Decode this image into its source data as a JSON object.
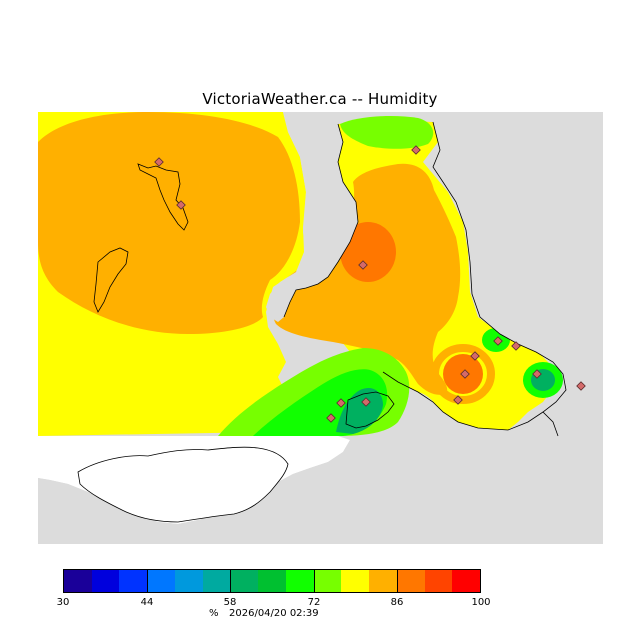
{
  "title": "VictoriaWeather.ca -- Humidity",
  "legend": {
    "units": "%",
    "labels": [
      "30",
      "44",
      "58",
      "72",
      "86",
      "100"
    ],
    "colors": [
      "#1a0099",
      "#0000dd",
      "#0033ff",
      "#0077ff",
      "#0099dd",
      "#00aaa0",
      "#00b060",
      "#00c030",
      "#11ff00",
      "#77ff00",
      "#ffff00",
      "#ffb000",
      "#ff7700",
      "#ff4400",
      "#ff0000"
    ]
  },
  "timestamp": "2026/04/20 02:39",
  "map": {
    "colors": {
      "land_outside": "#dcdcdc",
      "water_white": "#ffffff",
      "orange": "#ffb000",
      "dark_orange": "#ff7700",
      "yellow": "#ffff00",
      "light_green": "#77ff00",
      "green": "#11ff00",
      "teal": "#00b060",
      "station": "#d46a6a"
    }
  }
}
